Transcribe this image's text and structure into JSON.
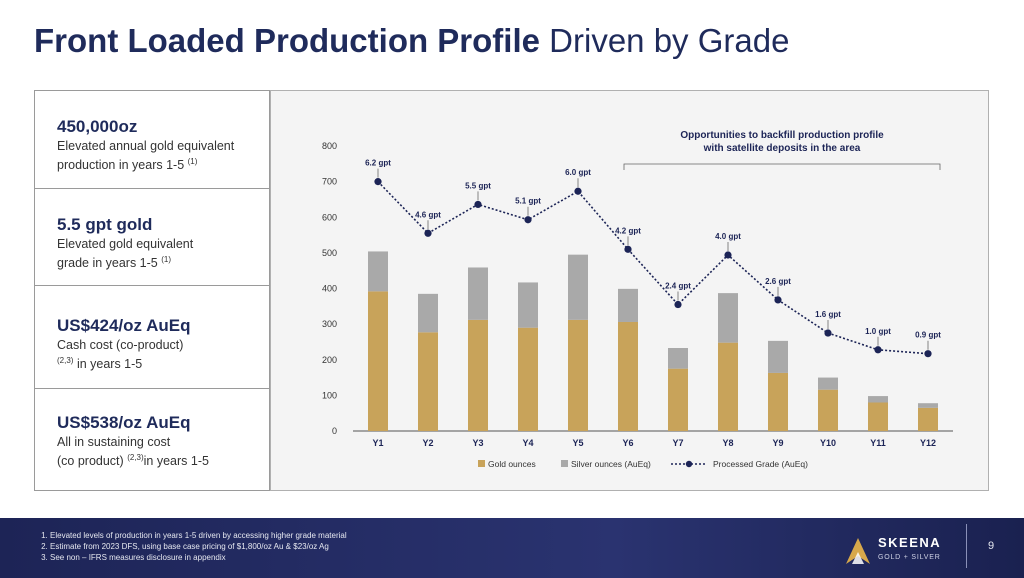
{
  "title": {
    "bold": "Front Loaded Production Profile",
    "regular": "Driven by Grade"
  },
  "stats": [
    {
      "value": "450,000oz",
      "desc1": "Elevated annual gold equivalent",
      "desc2": "production in years 1-5",
      "sup": "(1)"
    },
    {
      "value": "5.5 gpt gold",
      "desc1": "Elevated gold equivalent",
      "desc2": "grade in years 1-5",
      "sup": "(1)"
    },
    {
      "value": "US$424/oz AuEq",
      "desc1": "Cash cost (co-product)",
      "sup": "(2,3)",
      "desc2": "in years 1-5"
    },
    {
      "value": "US$538/oz AuEq",
      "desc1": "All in sustaining cost",
      "desc2a": "(co product)",
      "sup": "(2,3)",
      "desc2b": "in years 1-5"
    }
  ],
  "footer": {
    "notes": [
      "Elevated levels of production in years 1-5 driven by accessing higher grade material",
      "Estimate from 2023 DFS, using base case pricing of $1,800/oz Au & $23/oz Ag",
      "See non – IFRS measures disclosure in appendix"
    ],
    "brand": "SKEENA",
    "brand_sub": "GOLD + SILVER",
    "page": "9"
  },
  "chart_data": {
    "type": "bar",
    "categories": [
      "Y1",
      "Y2",
      "Y3",
      "Y4",
      "Y5",
      "Y6",
      "Y7",
      "Y8",
      "Y9",
      "Y10",
      "Y11",
      "Y12"
    ],
    "series": [
      {
        "name": "Gold ounces",
        "values": [
          392,
          277,
          312,
          290,
          312,
          306,
          175,
          248,
          163,
          116,
          80,
          65
        ],
        "color": "#c8a35a"
      },
      {
        "name": "Silver ounces (AuEq)",
        "values": [
          112,
          108,
          147,
          127,
          183,
          93,
          58,
          139,
          90,
          34,
          18,
          13
        ],
        "color": "#a9a9a9"
      }
    ],
    "line": {
      "name": "Processed Grade (AuEq)",
      "values": [
        700,
        555,
        636,
        593,
        673,
        510,
        355,
        494,
        368,
        275,
        228,
        217
      ],
      "labels": [
        "6.2 gpt",
        "4.6 gpt",
        "5.5 gpt",
        "5.1 gpt",
        "6.0 gpt",
        "4.2 gpt",
        "2.4 gpt",
        "4.0 gpt",
        "2.6 gpt",
        "1.6 gpt",
        "1.0 gpt",
        "0.9 gpt"
      ],
      "color": "#1c2456"
    },
    "yticks": [
      0,
      100,
      200,
      300,
      400,
      500,
      600,
      700,
      800
    ],
    "ylim": [
      0,
      800
    ],
    "annotation": {
      "line1": "Opportunities to backfill production profile",
      "line2": "with satellite deposits in the area"
    },
    "legend_position": "bottom"
  }
}
